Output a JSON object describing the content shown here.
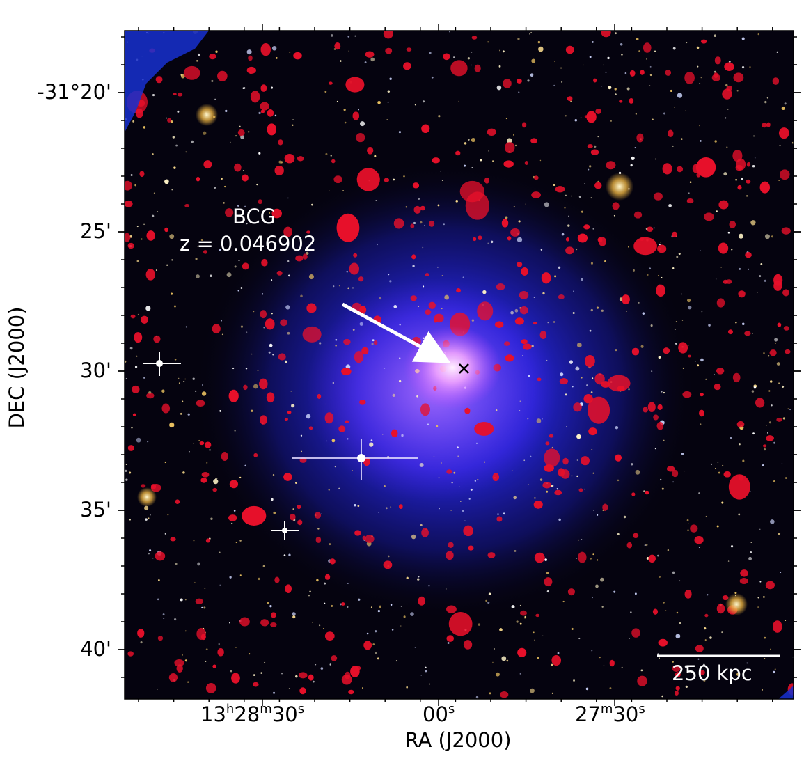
{
  "annotation": {
    "label": "BCG",
    "redshift": "z = 0.046902"
  },
  "scale_bar": {
    "label": "250 kpc"
  },
  "y_axis": {
    "title": "DEC (J2000)",
    "ticks": [
      "-31°20'",
      "25'",
      "30'",
      "35'",
      "40'"
    ]
  },
  "x_axis": {
    "title": "RA (J2000)",
    "ticks": [
      {
        "main": "13",
        "parts": [
          [
            "h",
            "28"
          ],
          [
            "m",
            "30"
          ],
          [
            "s",
            ""
          ]
        ]
      },
      {
        "main": "00",
        "parts": [
          [
            "s",
            ""
          ]
        ]
      },
      {
        "main": "27",
        "parts": [
          [
            "m",
            "30"
          ],
          [
            "s",
            ""
          ]
        ]
      }
    ]
  },
  "colors": {
    "background": "#05030f",
    "xray_glow": "#2a30ff",
    "radio_blobs": "#e8102a",
    "bcg_core": "#ffd2f0"
  }
}
